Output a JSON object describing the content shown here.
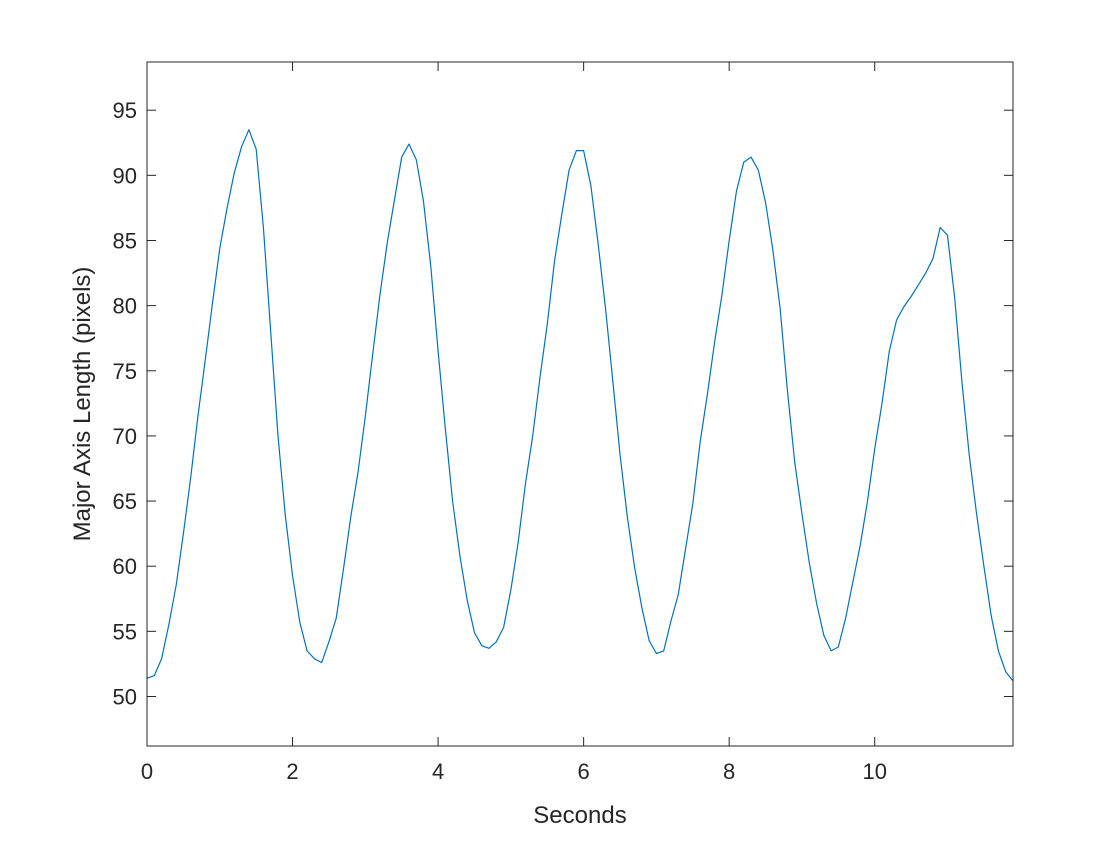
{
  "chart_data": {
    "type": "line",
    "title": "",
    "xlabel": "Seconds",
    "ylabel": "Major Axis Length (pixels)",
    "xlim": [
      0,
      11.9
    ],
    "ylim": [
      46.2,
      98.7
    ],
    "xticks": [
      0,
      2,
      4,
      6,
      8,
      10
    ],
    "yticks": [
      50,
      55,
      60,
      65,
      70,
      75,
      80,
      85,
      90,
      95
    ],
    "grid": false,
    "line_color": "#0072BD",
    "series": [
      {
        "x_start": 0,
        "x_step": 0.1,
        "values": [
          51.4,
          51.6,
          52.9,
          55.5,
          58.5,
          62.5,
          66.8,
          71.5,
          75.8,
          80.2,
          84.4,
          87.5,
          90.2,
          92.2,
          93.5,
          92.0,
          86.0,
          78.0,
          70.0,
          63.9,
          59.3,
          55.7,
          53.5,
          52.9,
          52.6,
          54.2,
          56.0,
          59.8,
          63.8,
          67.2,
          71.5,
          76.2,
          80.8,
          84.8,
          88.1,
          91.4,
          92.4,
          91.2,
          88.0,
          83.0,
          76.5,
          70.5,
          65.0,
          60.8,
          57.4,
          54.9,
          53.9,
          53.7,
          54.2,
          55.3,
          58.2,
          61.8,
          66.3,
          70.0,
          74.5,
          78.6,
          83.4,
          87.0,
          90.4,
          91.9,
          91.9,
          89.2,
          84.7,
          79.8,
          74.3,
          68.6,
          63.8,
          59.9,
          56.8,
          54.3,
          53.3,
          53.5,
          55.8,
          57.8,
          61.3,
          64.8,
          69.5,
          73.2,
          77.2,
          80.8,
          85.0,
          88.8,
          91.0,
          91.4,
          90.4,
          87.9,
          84.3,
          79.8,
          73.5,
          68.0,
          64.0,
          60.3,
          57.2,
          54.7,
          53.5,
          53.8,
          56.0,
          58.8,
          61.6,
          65.0,
          69.0,
          72.5,
          76.5,
          78.9,
          79.9,
          80.7,
          81.6,
          82.5,
          83.6,
          86.0,
          85.4,
          80.5,
          74.0,
          68.5,
          64.0,
          60.0,
          56.2,
          53.5,
          51.9,
          51.2
        ]
      }
    ]
  }
}
